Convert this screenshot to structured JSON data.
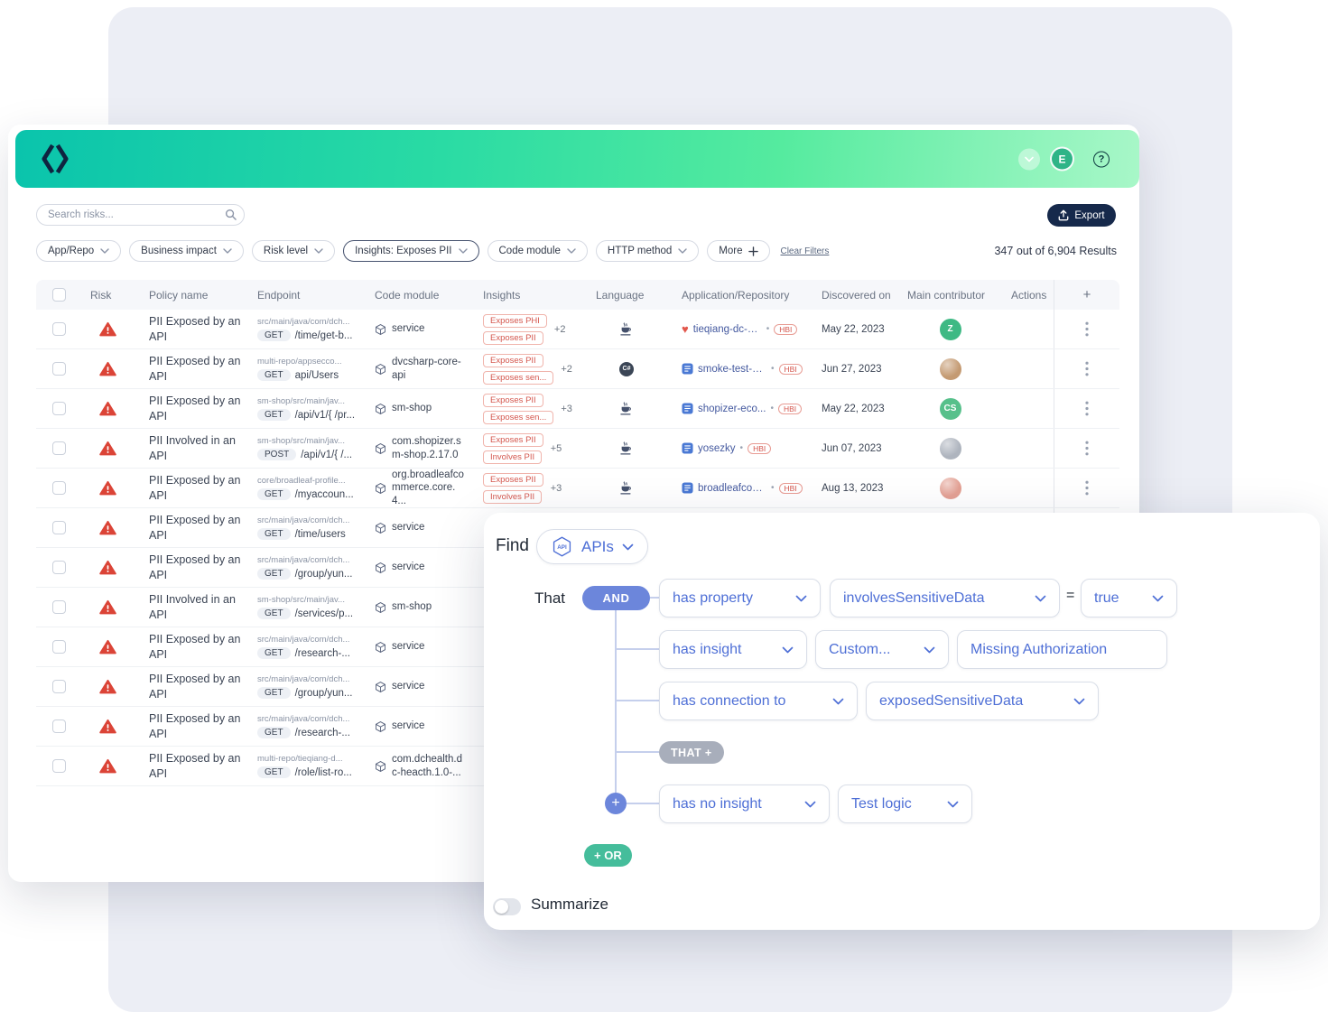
{
  "header": {
    "avatar_initial": "E",
    "help_label": "?"
  },
  "toolbar": {
    "search_placeholder": "Search risks...",
    "export_label": "Export",
    "filters": [
      {
        "label": "App/Repo",
        "active": false
      },
      {
        "label": "Business impact",
        "active": false
      },
      {
        "label": "Risk level",
        "active": false
      },
      {
        "label": "Insights: Exposes PII",
        "active": true
      },
      {
        "label": "Code module",
        "active": false
      },
      {
        "label": "HTTP method",
        "active": false
      }
    ],
    "more_label": "More",
    "clear_filters_label": "Clear Filters",
    "results_text": "347 out of 6,904 Results"
  },
  "table": {
    "columns": [
      "Risk",
      "Policy name",
      "Endpoint",
      "Code module",
      "Insights",
      "Language",
      "Application/Repository",
      "Discovered on",
      "Main contributor",
      "Actions"
    ],
    "add_column_label": "+",
    "rows": [
      {
        "policy": "PII Exposed by an API",
        "path": "src/main/java/com/dch...",
        "method": "GET",
        "endpoint": "/time/get-b...",
        "module": "service",
        "insights": [
          "Exposes PHI",
          "Exposes PII"
        ],
        "insights_more": "+2",
        "language": "java",
        "app": "tieqiang-dc-h...",
        "app_icon": "heart",
        "badge": "HBI",
        "date": "May 22, 2023",
        "avatar": {
          "type": "initials",
          "text": "Z",
          "color": "#3EB984"
        }
      },
      {
        "policy": "PII Exposed by an API",
        "path": "multi-repo/appsecco...",
        "method": "GET",
        "endpoint": "api/Users",
        "module": "dvcsharp-core-api",
        "insights": [
          "Exposes PII",
          "Exposes sen..."
        ],
        "insights_more": "+2",
        "language": "csharp",
        "app": "smoke-test-st...",
        "app_icon": "repo",
        "badge": "HBI",
        "date": "Jun 27, 2023",
        "avatar": {
          "type": "photo",
          "color": "#C49A72"
        }
      },
      {
        "policy": "PII Exposed by an API",
        "path": "sm-shop/src/main/jav...",
        "method": "GET",
        "endpoint": "/api/v1/{ /pr...",
        "module": "sm-shop",
        "insights": [
          "Exposes PII",
          "Exposes sen..."
        ],
        "insights_more": "+3",
        "language": "java",
        "app": "shopizer-eco...",
        "app_icon": "repo",
        "badge": "HBI",
        "date": "May 22, 2023",
        "avatar": {
          "type": "initials",
          "text": "CS",
          "color": "#57C08B"
        }
      },
      {
        "policy": "PII Involved in an API",
        "path": "sm-shop/src/main/jav...",
        "method": "POST",
        "endpoint": "/api/v1/{ /...",
        "module": "com.shopizer.sm-shop.2.17.0",
        "insights": [
          "Exposes PII",
          "Involves PII"
        ],
        "insights_more": "+5",
        "language": "java",
        "app": "yosezky",
        "app_icon": "repo",
        "badge": "HBI",
        "date": "Jun 07, 2023",
        "avatar": {
          "type": "photo",
          "color": "#AEB4BE"
        }
      },
      {
        "policy": "PII Exposed by an API",
        "path": "core/broadleaf-profile...",
        "method": "GET",
        "endpoint": "/myaccoun...",
        "module": "org.broadleafcommerce.core.4...",
        "insights": [
          "Exposes PII",
          "Involves PII"
        ],
        "insights_more": "+3",
        "language": "java",
        "app": "broadleafcom...",
        "app_icon": "repo",
        "badge": "HBI",
        "date": "Aug 13, 2023",
        "avatar": {
          "type": "photo",
          "color": "#E3A093"
        }
      },
      {
        "policy": "PII Exposed by an API",
        "path": "src/main/java/com/dch...",
        "method": "GET",
        "endpoint": "/time/users",
        "module": "service"
      },
      {
        "policy": "PII Exposed by an API",
        "path": "src/main/java/com/dch...",
        "method": "GET",
        "endpoint": "/group/yun...",
        "module": "service"
      },
      {
        "policy": "PII Involved in an API",
        "path": "sm-shop/src/main/jav...",
        "method": "GET",
        "endpoint": "/services/p...",
        "module": "sm-shop"
      },
      {
        "policy": "PII Exposed by an API",
        "path": "src/main/java/com/dch...",
        "method": "GET",
        "endpoint": "/research-...",
        "module": "service"
      },
      {
        "policy": "PII Exposed by an API",
        "path": "src/main/java/com/dch...",
        "method": "GET",
        "endpoint": "/group/yun...",
        "module": "service"
      },
      {
        "policy": "PII Exposed by an API",
        "path": "src/main/java/com/dch...",
        "method": "GET",
        "endpoint": "/research-...",
        "module": "service"
      },
      {
        "policy": "PII Exposed by an API",
        "path": "multi-repo/tieqiang-d...",
        "method": "GET",
        "endpoint": "/role/list-ro...",
        "module": "com.dchealth.dc-heacth.1.0-..."
      }
    ]
  },
  "query_builder": {
    "find_label": "Find",
    "entity_label": "APIs",
    "that_label": "That",
    "and_label": "AND",
    "rows": {
      "property": {
        "field": "has property",
        "name": "involvesSensitiveData",
        "equals": "=",
        "value": "true"
      },
      "insight": {
        "field": "has insight",
        "category": "Custom...",
        "value": "Missing Authorization"
      },
      "connection": {
        "field": "has connection to",
        "value": "exposedSensitiveData"
      },
      "no_insight": {
        "field": "has no insight",
        "value": "Test logic"
      }
    },
    "that_plus_label": "THAT +",
    "plus_label": "+",
    "or_label": "+ OR",
    "summarize_label": "Summarize"
  },
  "colors": {
    "accent_teal": "#0AC4AC",
    "accent_green": "#55EB9F",
    "navy": "#16294B",
    "risk_red": "#DB4437",
    "insight_red": "#D4574E",
    "query_blue": "#4E6FD6",
    "and_pill": "#6C86DB",
    "or_pill": "#45BD9B"
  }
}
